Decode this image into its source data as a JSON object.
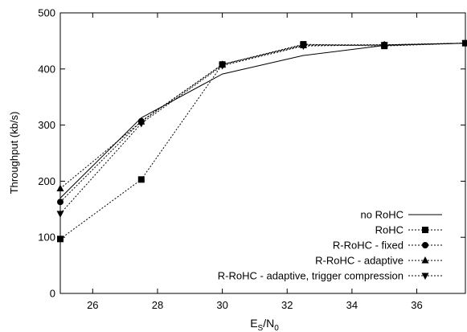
{
  "chart_data": {
    "type": "line",
    "title": "",
    "xlabel": {
      "base": "E",
      "sub1": "S",
      "mid": "/N",
      "sub2": "0"
    },
    "ylabel": "Throughput (kb/s)",
    "xlim": [
      25,
      37.5
    ],
    "ylim": [
      0,
      500
    ],
    "xticks": [
      26,
      28,
      30,
      32,
      34,
      36
    ],
    "yticks": [
      0,
      100,
      200,
      300,
      400,
      500
    ],
    "grid": false,
    "legend_position": "bottom-right",
    "series": [
      {
        "name": "no RoHC",
        "marker": "none",
        "dash": "solid",
        "x": [
          25,
          27.5,
          30,
          32.5,
          35,
          37.5
        ],
        "y": [
          170,
          313,
          391,
          424,
          442,
          446
        ]
      },
      {
        "name": "RoHC",
        "marker": "square",
        "dash": "dotted",
        "x": [
          25,
          27.5,
          30,
          32.5,
          35,
          37.5
        ],
        "y": [
          97,
          203,
          408,
          444,
          441,
          446
        ]
      },
      {
        "name": "R-RoHC - fixed",
        "marker": "circle",
        "dash": "dotted",
        "x": [
          25,
          27.5,
          30,
          32.5,
          35,
          37.5
        ],
        "y": [
          163,
          307,
          408,
          443,
          443,
          446
        ]
      },
      {
        "name": "R-RoHC - adaptive",
        "marker": "triangle-up",
        "dash": "dotted",
        "x": [
          25,
          27.5,
          30,
          32.5,
          35,
          37.5
        ],
        "y": [
          187,
          306,
          408,
          442,
          443,
          446
        ]
      },
      {
        "name": "R-RoHC - adaptive, trigger compression",
        "marker": "triangle-down",
        "dash": "dotted",
        "x": [
          25,
          27.5,
          30,
          32.5,
          35,
          37.5
        ],
        "y": [
          142,
          303,
          406,
          441,
          443,
          446
        ]
      }
    ]
  }
}
